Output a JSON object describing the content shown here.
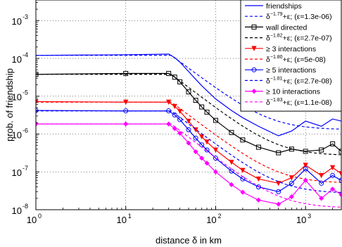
{
  "chart_data": {
    "type": "line",
    "title": "",
    "xlabel": "distance δ in km",
    "ylabel": "prob. of friendship",
    "xscale": "log",
    "yscale": "log",
    "xlim": [
      1,
      2500
    ],
    "ylim": [
      1e-08,
      0.0035
    ],
    "grid": true,
    "legend_position": "top-right",
    "x_ticks": [
      {
        "base": "10",
        "exp": "0",
        "value": 1
      },
      {
        "base": "10",
        "exp": "1",
        "value": 10
      },
      {
        "base": "10",
        "exp": "2",
        "value": 100
      },
      {
        "base": "10",
        "exp": "3",
        "value": 1000
      }
    ],
    "y_ticks": [
      {
        "base": "10",
        "exp": "-8",
        "value": 1e-08
      },
      {
        "base": "10",
        "exp": "-7",
        "value": 1e-07
      },
      {
        "base": "10",
        "exp": "-6",
        "value": 1e-06
      },
      {
        "base": "10",
        "exp": "-5",
        "value": 1e-05
      },
      {
        "base": "10",
        "exp": "-4",
        "value": 0.0001
      },
      {
        "base": "10",
        "exp": "-3",
        "value": 0.001
      }
    ],
    "series": [
      {
        "name": "friendships",
        "color": "#0000ff",
        "marker": "none",
        "plateau": 0.00012,
        "x": [
          1,
          10,
          30,
          35,
          40,
          50,
          60,
          70,
          80,
          100,
          150,
          200,
          300,
          500,
          700,
          1000,
          1500,
          2000,
          2500
        ],
        "y": [
          0.00012,
          0.000125,
          0.00013,
          0.000105,
          8e-05,
          4.5e-05,
          2.8e-05,
          1.9e-05,
          1.4e-05,
          8.5e-06,
          4.2e-06,
          2.7e-06,
          1.6e-06,
          9e-07,
          1.2e-06,
          2.2e-06,
          1.6e-06,
          2.5e-06,
          2.2e-06
        ]
      },
      {
        "name": "δ^-1.79+ε; (ε=1.3e-06)",
        "label_parts": [
          "δ",
          "−1.79",
          "+ε; (ε=1.3e-06)"
        ],
        "color": "#0000ff",
        "dashed": true,
        "fit": {
          "plateau": 0.00012,
          "exponent": -1.79,
          "eps": 1.3e-06
        }
      },
      {
        "name": "wall directed",
        "color": "#000000",
        "marker": "square",
        "x": [
          1,
          10,
          30,
          35,
          40,
          50,
          60,
          70,
          80,
          100,
          150,
          200,
          300,
          500,
          700,
          1000,
          1500,
          2000,
          2500
        ],
        "y": [
          3.8e-05,
          4e-05,
          4e-05,
          3.2e-05,
          2.4e-05,
          1.3e-05,
          7.8e-06,
          5.2e-06,
          3.8e-06,
          2.3e-06,
          1.1e-06,
          7e-07,
          4.5e-07,
          3.2e-07,
          4e-07,
          3.5e-07,
          3.8e-07,
          5.5e-07,
          3.5e-07
        ]
      },
      {
        "name": "δ^-1.82+ε; (ε=2.7e-07)",
        "label_parts": [
          "δ",
          "−1.82",
          "+ε; (ε=2.7e-07)"
        ],
        "color": "#000000",
        "dashed": true,
        "fit": {
          "plateau": 3.8e-05,
          "exponent": -1.82,
          "eps": 2.7e-07
        }
      },
      {
        "name": "≥ 3 interactions",
        "color": "#ff0000",
        "marker": "triangle-down",
        "x": [
          1,
          10,
          30,
          35,
          40,
          50,
          60,
          70,
          80,
          100,
          150,
          200,
          300,
          500,
          700,
          1000,
          1500,
          2000,
          2500
        ],
        "y": [
          7.2e-06,
          7e-06,
          7e-06,
          5.4e-06,
          4e-06,
          2.2e-06,
          1.3e-06,
          8.5e-07,
          6.2e-07,
          3.8e-07,
          1.8e-07,
          1.1e-07,
          6.5e-08,
          5e-08,
          7e-08,
          1.5e-07,
          8e-08,
          1.3e-07,
          9e-08
        ]
      },
      {
        "name": "δ^-1.80+ε; (ε=5e-08)",
        "label_parts": [
          "δ",
          "−1.80",
          "+ε; (ε=5e-08)"
        ],
        "color": "#ff0000",
        "dashed": true,
        "fit": {
          "plateau": 7e-06,
          "exponent": -1.8,
          "eps": 5e-08
        }
      },
      {
        "name": "≥ 5 interactions",
        "color": "#0000ff",
        "marker": "circle",
        "x": [
          1,
          10,
          30,
          35,
          40,
          50,
          60,
          70,
          80,
          100,
          150,
          200,
          300,
          500,
          700,
          1000,
          1500,
          2000,
          2500
        ],
        "y": [
          4.2e-06,
          4.1e-06,
          4.1e-06,
          3.2e-06,
          2.4e-06,
          1.3e-06,
          7.8e-07,
          5.2e-07,
          3.8e-07,
          2.3e-07,
          1.05e-07,
          6.5e-08,
          4e-08,
          3e-08,
          5e-08,
          1.2e-07,
          5e-08,
          8e-08,
          6e-08
        ]
      },
      {
        "name": "δ^-1.81+ε; (ε=2.7e-08)",
        "label_parts": [
          "δ",
          "−1.81",
          "+ε; (ε=2.7e-08)"
        ],
        "color": "#0000ff",
        "dashed": true,
        "fit": {
          "plateau": 4.1e-06,
          "exponent": -1.81,
          "eps": 2.7e-08
        }
      },
      {
        "name": "≥ 10 interactions",
        "color": "#ff00ff",
        "marker": "diamond",
        "x": [
          1,
          10,
          30,
          35,
          40,
          50,
          60,
          70,
          80,
          100,
          150,
          200,
          300,
          500,
          700,
          1000,
          1500,
          2000,
          2500
        ],
        "y": [
          1.85e-06,
          1.85e-06,
          1.85e-06,
          1.4e-06,
          1.05e-06,
          5.8e-07,
          3.4e-07,
          2.3e-07,
          1.7e-07,
          1e-07,
          4.6e-08,
          2.9e-08,
          1.8e-08,
          1.4e-08,
          2.2e-08,
          6e-08,
          2e-08,
          3.5e-08,
          2.5e-08
        ]
      },
      {
        "name": "δ^-1.83+ε; (ε=1.1e-08)",
        "label_parts": [
          "δ",
          "−1.83",
          "+ε; (ε=1.1e-08)"
        ],
        "color": "#ff00ff",
        "dashed": true,
        "fit": {
          "plateau": 1.85e-06,
          "exponent": -1.83,
          "eps": 1.1e-08
        }
      }
    ]
  }
}
